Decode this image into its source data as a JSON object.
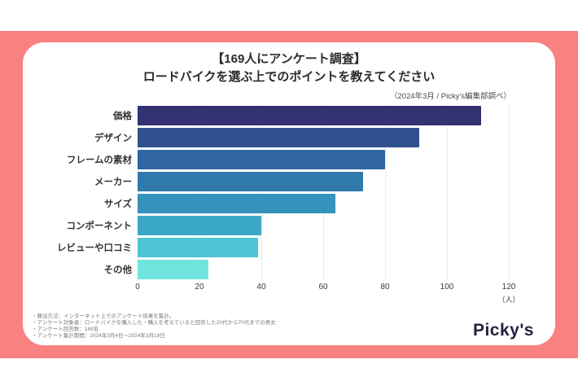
{
  "header": {
    "title_line1": "【169人にアンケート調査】",
    "title_line2": "ロードバイクを選ぶ上でのポイントを教えてください",
    "source_note": "（2024年3月 / Picky's編集部調べ）"
  },
  "chart_data": {
    "type": "bar",
    "orientation": "horizontal",
    "title": "【169人にアンケート調査】ロードバイクを選ぶ上でのポイントを教えてください",
    "categories": [
      "価格",
      "デザイン",
      "フレームの素材",
      "メーカー",
      "サイズ",
      "コンポーネント",
      "レビューや口コミ",
      "その他"
    ],
    "values": [
      111,
      91,
      80,
      73,
      64,
      40,
      39,
      23
    ],
    "xlabel": "（人）",
    "ylabel": "",
    "xlim": [
      0,
      120
    ],
    "xticks": [
      0,
      20,
      40,
      60,
      80,
      100,
      120
    ],
    "grid": true,
    "legend": false,
    "bar_colors": [
      "#333272",
      "#33508e",
      "#2f66a3",
      "#3079ad",
      "#3492bb",
      "#3ba9c6",
      "#4fc4d6",
      "#70e4de"
    ]
  },
  "footnotes": [
    "・算出方法：インターネット上でのアンケート結果を集計。",
    "・アンケート対象者：ロードバイクを購入した・購入を考えていると回答した20代から70代までの男女",
    "・アンケート回答数：169名",
    "・アンケート集計期間：2024年3月4日～2024年3月18日"
  ],
  "logo": {
    "text": "Picky's"
  },
  "colors": {
    "background_band": "#F98180",
    "card": "#ffffff",
    "logo_text": "#23233E",
    "gridline": "#ebebeb"
  }
}
